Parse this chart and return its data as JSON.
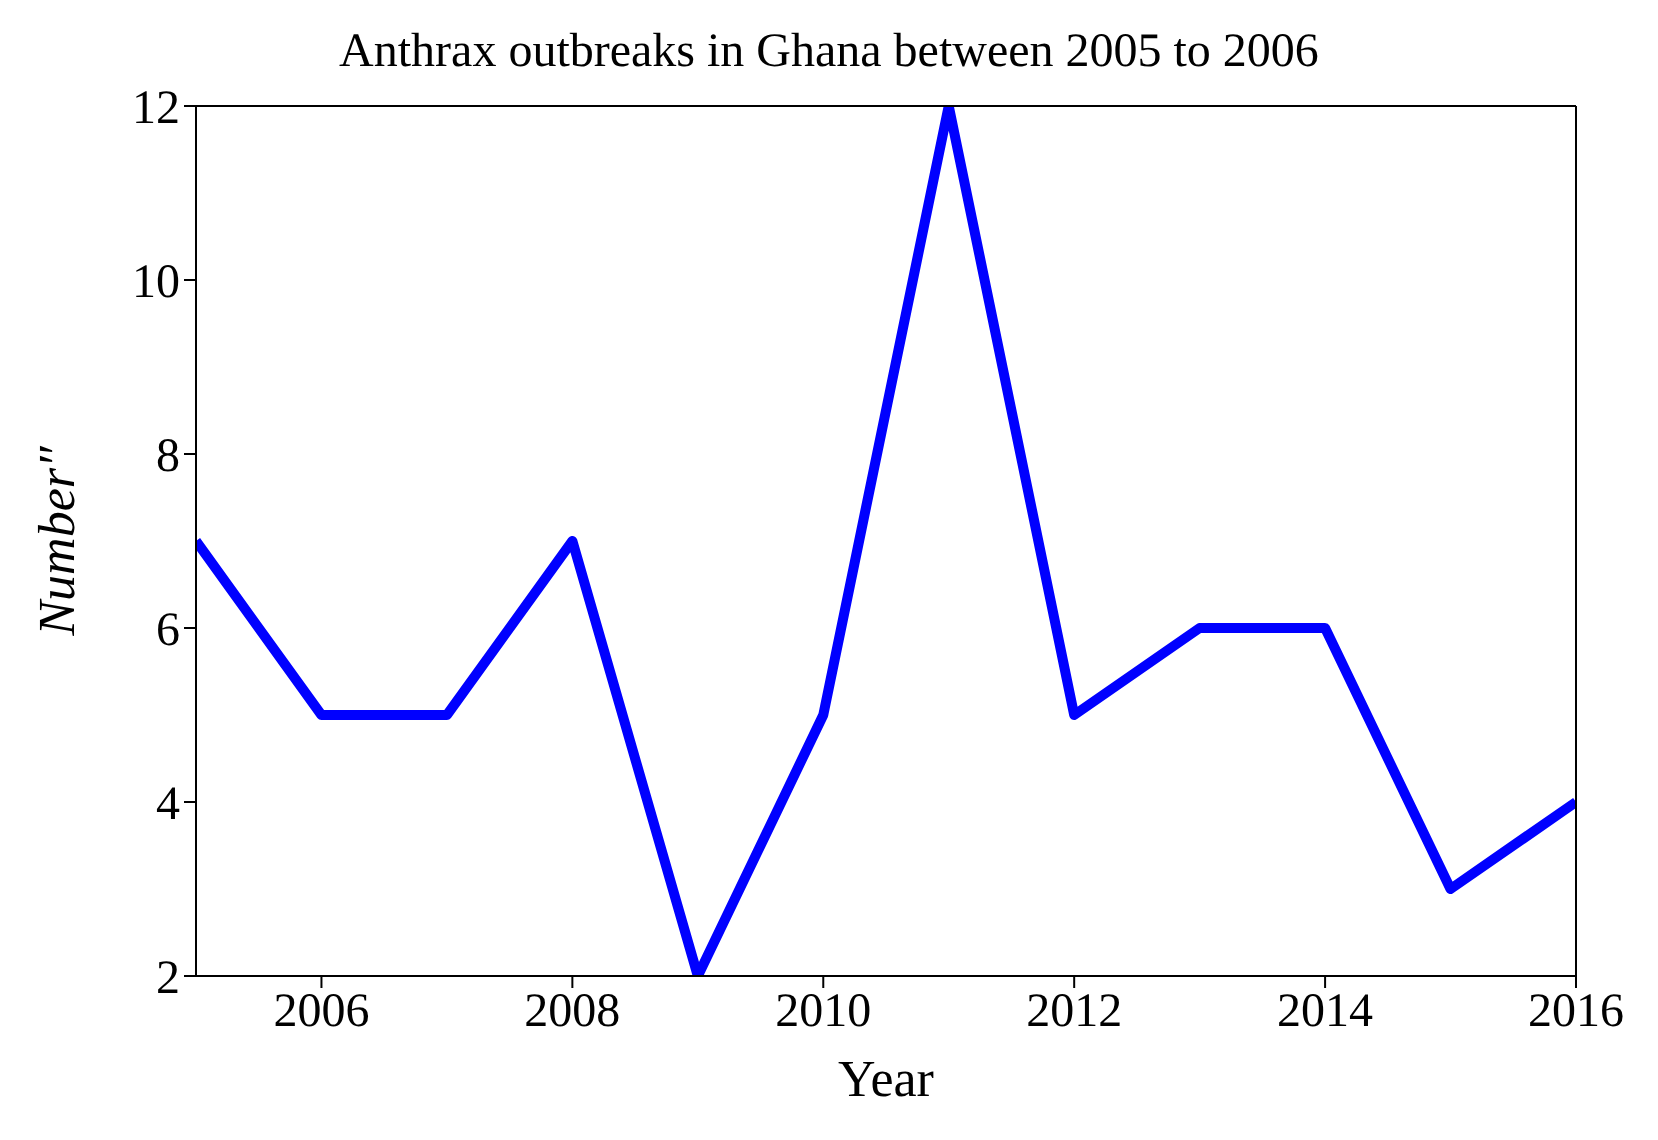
{
  "chart_data": {
    "type": "line",
    "title": "Anthrax outbreaks in Ghana between 2005 to 2006",
    "xlabel": "Year",
    "ylabel": "Number″",
    "x": [
      2005,
      2006,
      2007,
      2008,
      2009,
      2010,
      2011,
      2012,
      2013,
      2014,
      2015,
      2016
    ],
    "series": [
      {
        "color": "#0000ff",
        "values": [
          7,
          5,
          5,
          7,
          2,
          5,
          12,
          5,
          6,
          6,
          3,
          4
        ]
      }
    ],
    "xlim": [
      2005,
      2016
    ],
    "xticks": [
      2006,
      2008,
      2010,
      2012,
      2014,
      2016
    ],
    "ylim": [
      2,
      12
    ],
    "yticks": [
      2,
      4,
      6,
      8,
      10,
      12
    ],
    "grid": false,
    "legend": false,
    "marker": "none",
    "line_style": "solid"
  }
}
